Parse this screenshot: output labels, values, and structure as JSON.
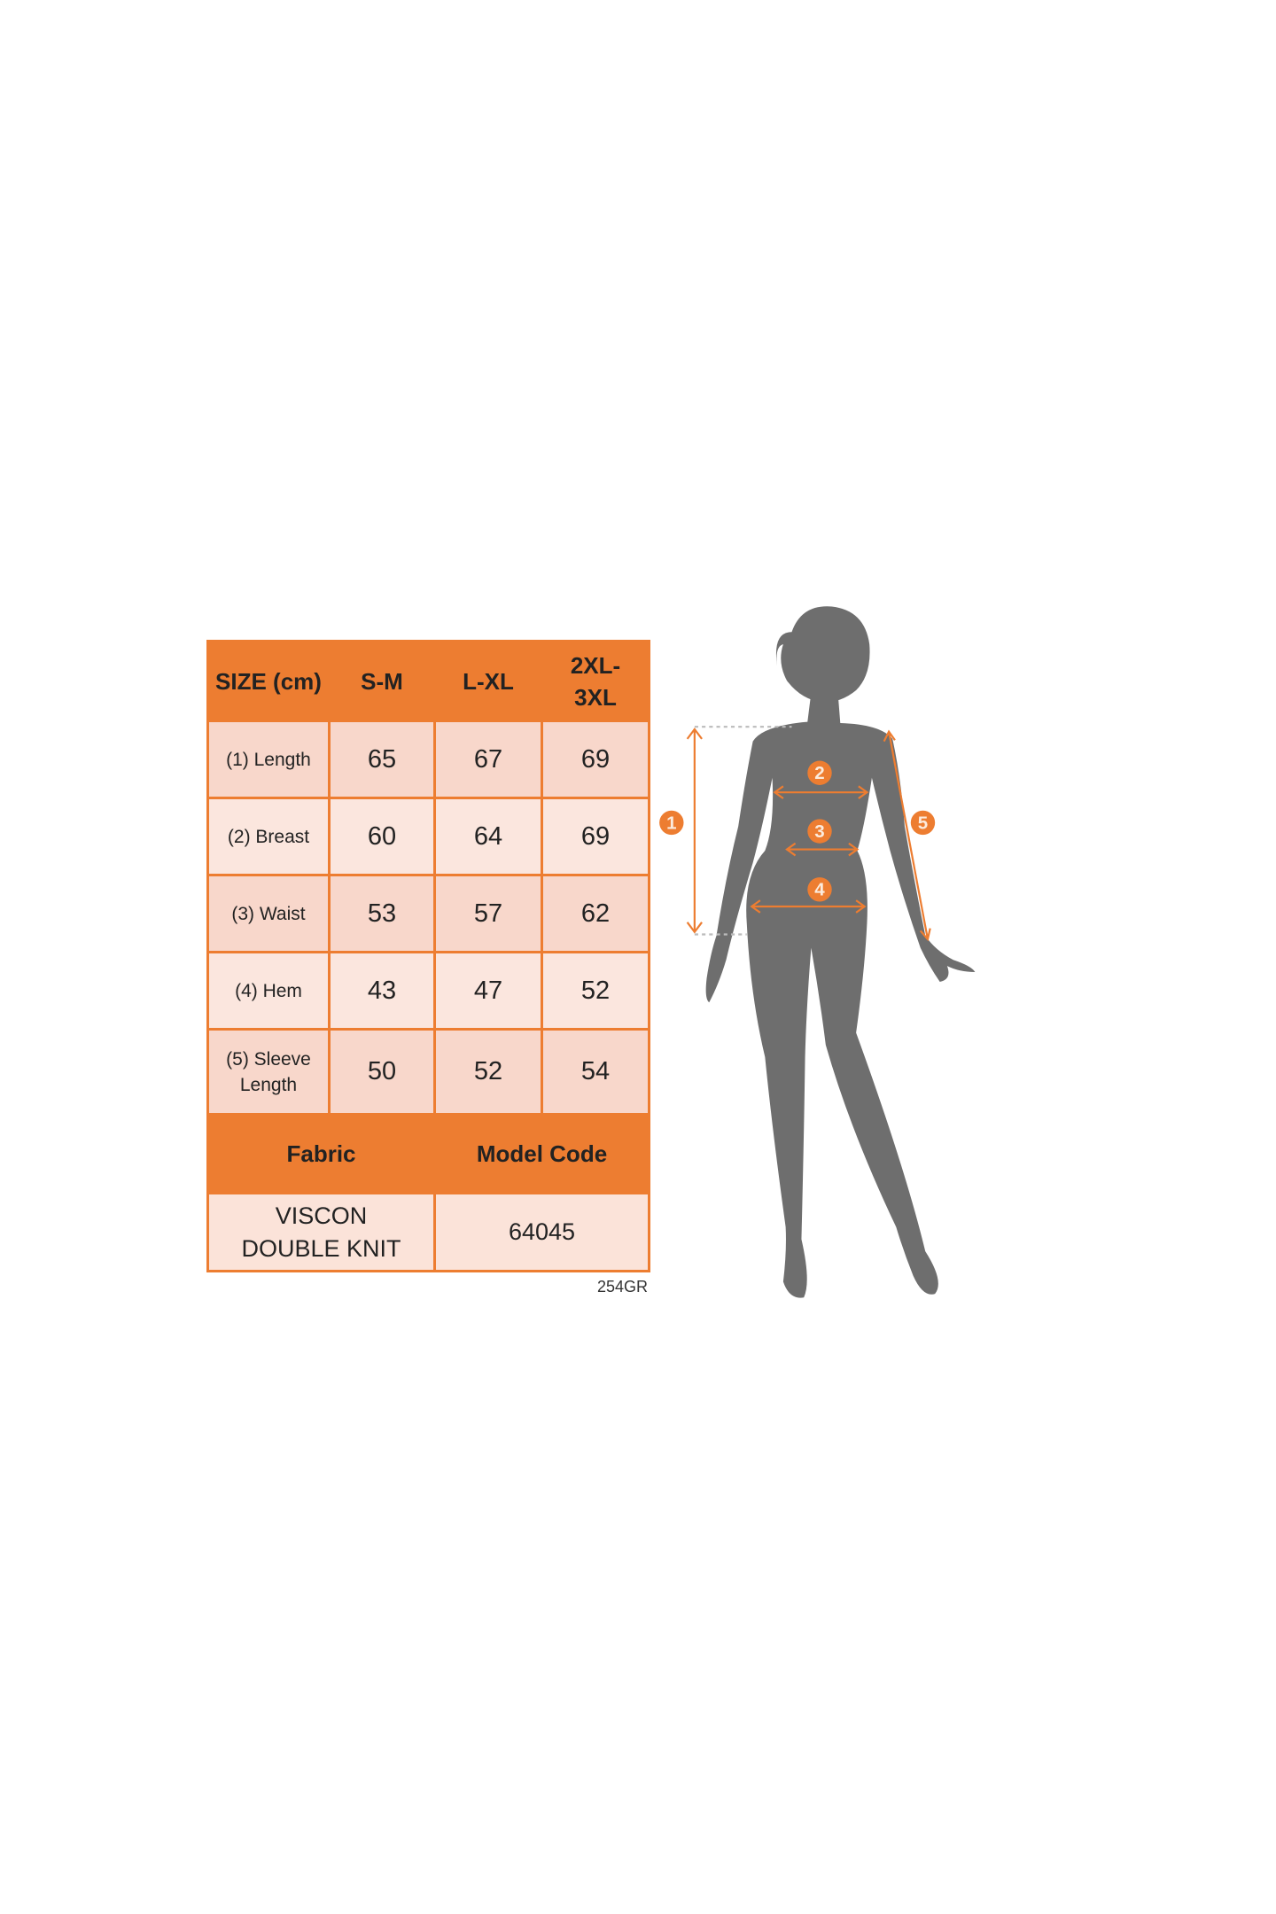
{
  "size_chart": {
    "header": {
      "size_label": "SIZE (cm)",
      "columns": [
        "S-M",
        "L-XL",
        "2XL-3XL"
      ]
    },
    "rows": [
      {
        "label": "(1) Length",
        "values": [
          "65",
          "67",
          "69"
        ]
      },
      {
        "label": "(2) Breast",
        "values": [
          "60",
          "64",
          "69"
        ]
      },
      {
        "label": "(3) Waist",
        "values": [
          "53",
          "57",
          "62"
        ]
      },
      {
        "label": "(4) Hem",
        "values": [
          "43",
          "47",
          "52"
        ]
      },
      {
        "label": "(5) Sleeve Length",
        "values": [
          "50",
          "52",
          "54"
        ]
      }
    ],
    "fabric_header": "Fabric",
    "model_code_header": "Model Code",
    "fabric_value": "VISCON DOUBLE KNIT",
    "model_code_value": "64045",
    "footer_code": "254GR"
  },
  "figure": {
    "markers": [
      "1",
      "2",
      "3",
      "4",
      "5"
    ],
    "accent_color": "#ED7D31",
    "silhouette_color": "#6E6E6E"
  }
}
